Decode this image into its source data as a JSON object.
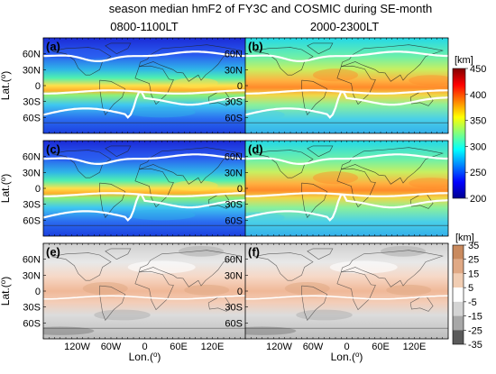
{
  "chart_data": [
    {
      "type": "heatmap",
      "panels": [
        {
          "label": "(a)",
          "column_title": "0800-1100LT"
        },
        {
          "label": "(b)",
          "column_title": "2000-2300LT"
        },
        {
          "label": "(c)"
        },
        {
          "label": "(d)"
        }
      ],
      "title": "season median hmF2 of FY3C and COSMIC during SE-month",
      "ylabel": "Lat.(°)",
      "y_ticks": [
        "60N",
        "30N",
        "0",
        "30S",
        "60S"
      ],
      "ylim": [
        -90,
        90
      ],
      "xlim": [
        -180,
        180
      ],
      "colorbar": {
        "unit": "[km]",
        "range": [
          200,
          450
        ],
        "ticks": [
          "450",
          "400",
          "350",
          "300",
          "250",
          "200"
        ],
        "colormap": [
          "#00008f",
          "#0000ff",
          "#0080ff",
          "#00ffff",
          "#80ff80",
          "#ffff00",
          "#ff8000",
          "#ff0000",
          "#800000"
        ]
      }
    },
    {
      "type": "heatmap",
      "panels": [
        {
          "label": "(e)"
        },
        {
          "label": "(f)"
        }
      ],
      "xlabel": "Lon.(°)",
      "ylabel": "Lat.(°)",
      "x_ticks": [
        "120W",
        "60W",
        "0",
        "60E",
        "120E"
      ],
      "y_ticks": [
        "60N",
        "30N",
        "0",
        "30S",
        "60S"
      ],
      "xlim": [
        -180,
        180
      ],
      "ylim": [
        -90,
        90
      ],
      "colorbar": {
        "unit": "[km]",
        "ticks": [
          "35",
          "25",
          "15",
          "5",
          "-5",
          "-15",
          "-25",
          "-35"
        ],
        "levels": [
          {
            "range": [
              25,
              35
            ],
            "color": "#c98a5e"
          },
          {
            "range": [
              15,
              25
            ],
            "color": "#e0a985"
          },
          {
            "range": [
              5,
              15
            ],
            "color": "#f1cdb3"
          },
          {
            "range": [
              -5,
              5
            ],
            "color": "#ffffff"
          },
          {
            "range": [
              -15,
              -5
            ],
            "color": "#d4d4d4"
          },
          {
            "range": [
              -25,
              -15
            ],
            "color": "#a8a8a8"
          },
          {
            "range": [
              -35,
              -25
            ],
            "color": "#5a5a5a"
          }
        ]
      }
    }
  ]
}
